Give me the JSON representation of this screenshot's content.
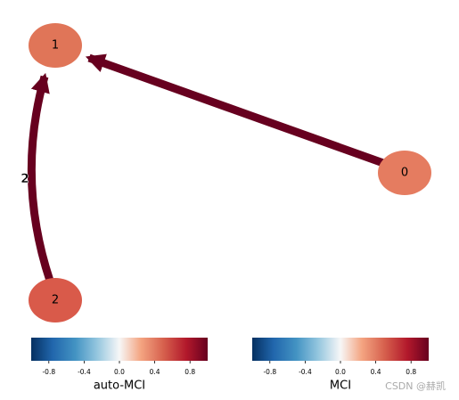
{
  "nodes": [
    {
      "label": "1"
    },
    {
      "label": "0"
    },
    {
      "label": "2"
    }
  ],
  "edge_labels": [
    "2"
  ],
  "colorbars": [
    {
      "label": "auto-MCI",
      "lim": [
        -1,
        1
      ],
      "ticks": [
        -0.8,
        -0.4,
        {
          "value": 0,
          "label": "0.0"
        },
        0.4,
        0.8
      ]
    },
    {
      "label": "MCI",
      "lim": [
        -1,
        1
      ],
      "ticks": [
        -0.8,
        -0.4,
        {
          "value": 0,
          "label": "0.0"
        },
        0.4,
        0.8
      ]
    }
  ],
  "watermark": "CSDN @赫凯"
}
